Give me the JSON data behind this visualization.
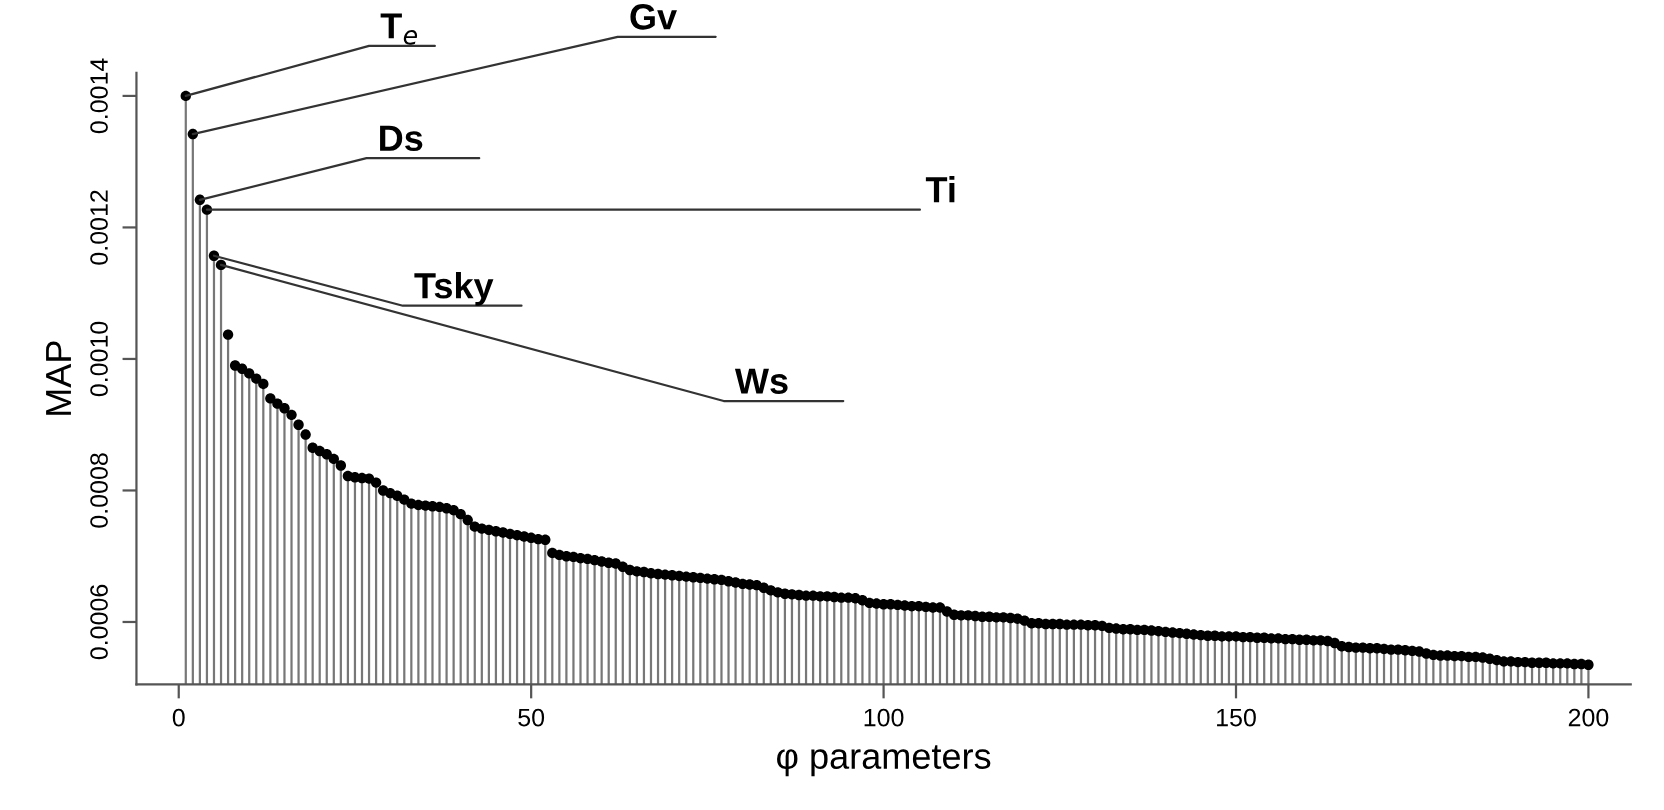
{
  "chart_data": {
    "type": "lollipop",
    "xlabel": "φ parameters",
    "ylabel": "MAP",
    "x": [
      1,
      2,
      3,
      4,
      5,
      6,
      7,
      8,
      9,
      10,
      11,
      12,
      13,
      14,
      15,
      16,
      17,
      18,
      19,
      20,
      21,
      22,
      23,
      24,
      25,
      26,
      27,
      28,
      29,
      30,
      31,
      32,
      33,
      34,
      35,
      36,
      37,
      38,
      39,
      40,
      41,
      42,
      43,
      44,
      45,
      46,
      47,
      48,
      49,
      50,
      51,
      52,
      53,
      54,
      55,
      56,
      57,
      58,
      59,
      60,
      61,
      62,
      63,
      64,
      65,
      66,
      67,
      68,
      69,
      70,
      71,
      72,
      73,
      74,
      75,
      76,
      77,
      78,
      79,
      80,
      81,
      82,
      83,
      84,
      85,
      86,
      87,
      88,
      89,
      90,
      91,
      92,
      93,
      94,
      95,
      96,
      97,
      98,
      99,
      100,
      101,
      102,
      103,
      104,
      105,
      106,
      107,
      108,
      109,
      110,
      111,
      112,
      113,
      114,
      115,
      116,
      117,
      118,
      119,
      120,
      121,
      122,
      123,
      124,
      125,
      126,
      127,
      128,
      129,
      130,
      131,
      132,
      133,
      134,
      135,
      136,
      137,
      138,
      139,
      140,
      141,
      142,
      143,
      144,
      145,
      146,
      147,
      148,
      149,
      150,
      151,
      152,
      153,
      154,
      155,
      156,
      157,
      158,
      159,
      160,
      161,
      162,
      163,
      164,
      165,
      166,
      167,
      168,
      169,
      170,
      171,
      172,
      173,
      174,
      175,
      176,
      177,
      178,
      179,
      180,
      181,
      182,
      183,
      184,
      185,
      186,
      187,
      188,
      189,
      190,
      191,
      192,
      193,
      194,
      195,
      196,
      197,
      198,
      199,
      200
    ],
    "values": [
      0.0014,
      0.001342,
      0.001242,
      0.001227,
      0.001157,
      0.001143,
      0.001037,
      0.00099,
      0.000985,
      0.000978,
      0.00097,
      0.000962,
      0.00094,
      0.000932,
      0.000925,
      0.000915,
      0.0009,
      0.000885,
      0.000865,
      0.00086,
      0.000855,
      0.000848,
      0.000838,
      0.000822,
      0.00082,
      0.000819,
      0.000818,
      0.000812,
      0.0008,
      0.000796,
      0.000792,
      0.000786,
      0.00078,
      0.000778,
      0.000777,
      0.000776,
      0.000775,
      0.000773,
      0.00077,
      0.000764,
      0.000755,
      0.000745,
      0.000742,
      0.00074,
      0.000738,
      0.000736,
      0.000734,
      0.000732,
      0.00073,
      0.000728,
      0.000726,
      0.000725,
      0.000705,
      0.000702,
      0.0007,
      0.000699,
      0.000697,
      0.000696,
      0.000694,
      0.000692,
      0.00069,
      0.000689,
      0.000684,
      0.000679,
      0.000677,
      0.000676,
      0.000674,
      0.000673,
      0.000672,
      0.000671,
      0.00067,
      0.000669,
      0.000668,
      0.000667,
      0.000666,
      0.000665,
      0.000664,
      0.000662,
      0.00066,
      0.000658,
      0.000657,
      0.000656,
      0.000652,
      0.000648,
      0.000645,
      0.000643,
      0.000642,
      0.000641,
      0.00064,
      0.00064,
      0.000639,
      0.000639,
      0.000638,
      0.000637,
      0.000637,
      0.000636,
      0.000633,
      0.000629,
      0.000628,
      0.000627,
      0.000627,
      0.000626,
      0.000625,
      0.000624,
      0.000624,
      0.000623,
      0.000622,
      0.000622,
      0.000616,
      0.000611,
      0.00061,
      0.00061,
      0.000609,
      0.000608,
      0.000608,
      0.000607,
      0.000607,
      0.000606,
      0.000605,
      0.000602,
      0.000598,
      0.000598,
      0.000597,
      0.000597,
      0.000597,
      0.000596,
      0.000596,
      0.000596,
      0.000595,
      0.000595,
      0.000594,
      0.000591,
      0.00059,
      0.000589,
      0.000589,
      0.000588,
      0.000588,
      0.000587,
      0.000586,
      0.000585,
      0.000584,
      0.000583,
      0.000582,
      0.000581,
      0.00058,
      0.000579,
      0.000579,
      0.000578,
      0.000578,
      0.000578,
      0.000577,
      0.000577,
      0.000576,
      0.000576,
      0.000575,
      0.000575,
      0.000574,
      0.000574,
      0.000573,
      0.000573,
      0.000572,
      0.000572,
      0.000571,
      0.000568,
      0.000563,
      0.000562,
      0.000561,
      0.000561,
      0.00056,
      0.00056,
      0.000559,
      0.000558,
      0.000558,
      0.000557,
      0.000556,
      0.000555,
      0.000552,
      0.00055,
      0.000549,
      0.000549,
      0.000548,
      0.000548,
      0.000547,
      0.000547,
      0.000546,
      0.000544,
      0.000542,
      0.00054,
      0.00054,
      0.000539,
      0.000539,
      0.000538,
      0.000538,
      0.000538,
      0.000537,
      0.000537,
      0.000537,
      0.000536,
      0.000536,
      0.000535
    ],
    "color": "#000000",
    "marker": "circle",
    "xlim": [
      -6,
      206
    ],
    "xticks": [
      0,
      50,
      100,
      150,
      200
    ],
    "ylim": [
      0.000505,
      0.001435
    ],
    "yticks": [
      0.0006,
      0.0008,
      {
        "value": 0.001,
        "label": "0.0010"
      },
      0.0012,
      0.0014
    ],
    "grid": false,
    "legend": false,
    "annotations": [
      {
        "text": "T$_{e}$",
        "x": 1,
        "y": 0.0014
      },
      {
        "text": "Gv",
        "x": 2,
        "y": 0.001342
      },
      {
        "text": "Ds",
        "x": 3,
        "y": 0.001242
      },
      {
        "text": "Ti",
        "x": 4,
        "y": 0.001227
      },
      {
        "text": "Tsky",
        "x": 5,
        "y": 0.001157
      },
      {
        "text": "Ws",
        "x": 6,
        "y": 0.001143
      }
    ]
  }
}
